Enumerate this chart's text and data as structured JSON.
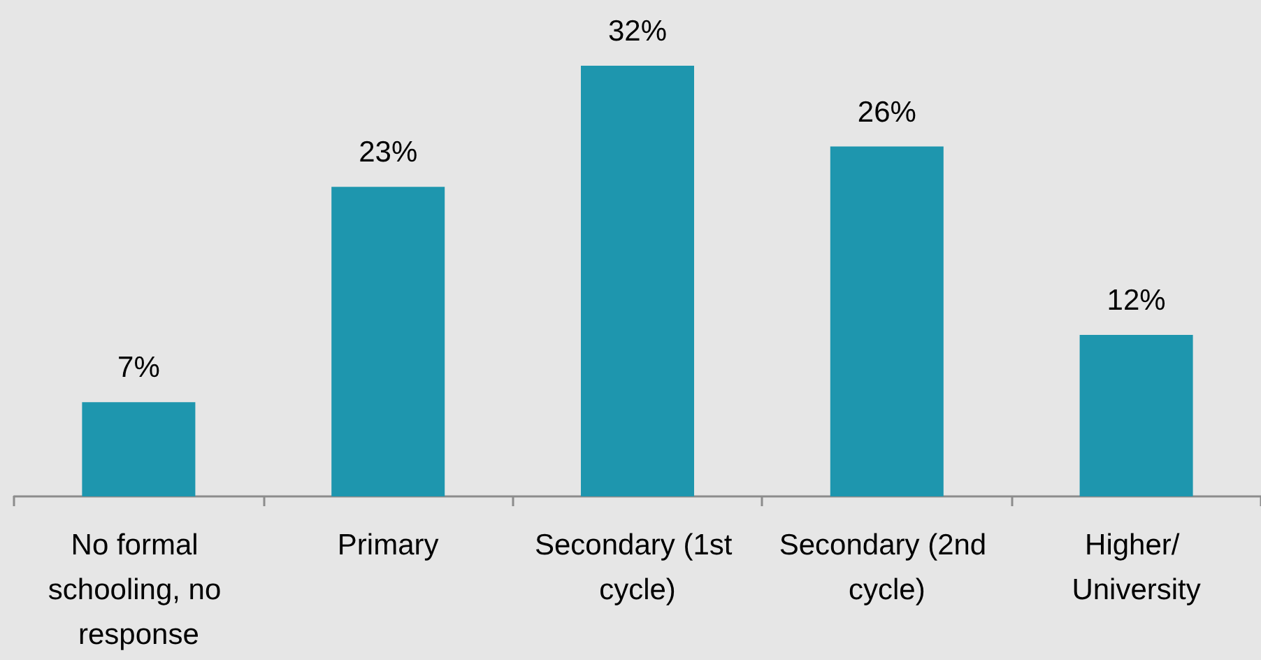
{
  "chart_data": {
    "type": "bar",
    "categories": [
      "No formal schooling, no response",
      "Primary",
      "Secondary (1st cycle)",
      "Secondary (2nd cycle)",
      "Higher/ University"
    ],
    "values": [
      7,
      23,
      32,
      26,
      12
    ],
    "value_labels": [
      "7%",
      "23%",
      "32%",
      "26%",
      "12%"
    ],
    "color": "#1e96ae"
  }
}
